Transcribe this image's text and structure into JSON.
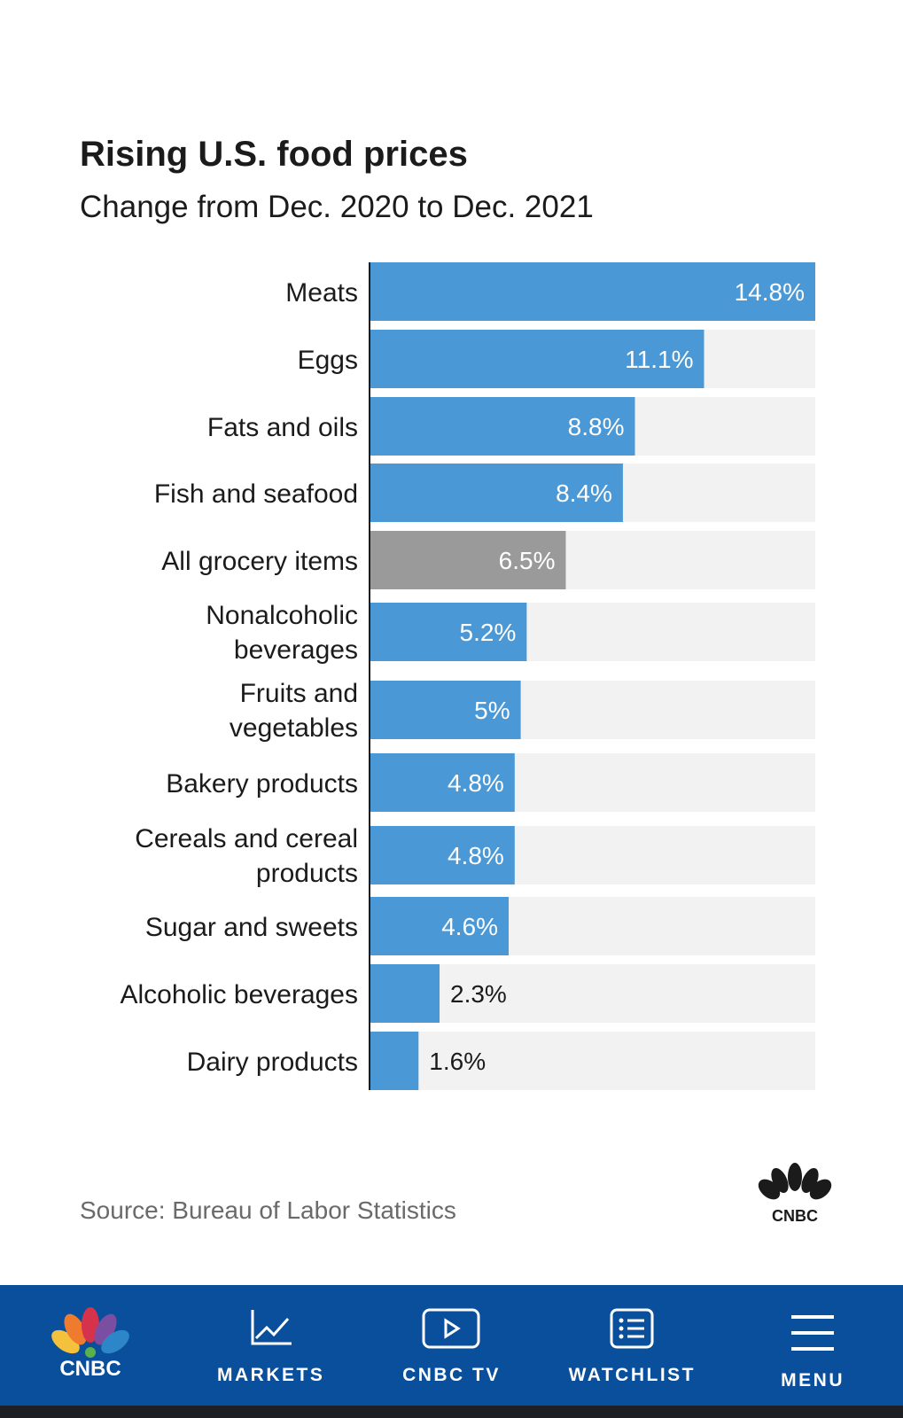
{
  "title": "Rising U.S. food prices",
  "subtitle": "Change from Dec. 2020 to Dec. 2021",
  "source": "Source: Bureau of Labor Statistics",
  "colors": {
    "bar": "#4a98d6",
    "highlight": "#9a9a9a",
    "track": "#f2f2f2",
    "nav": "#0a4f9b"
  },
  "chart_data": {
    "type": "bar",
    "orientation": "horizontal",
    "categories": [
      [
        "Meats"
      ],
      [
        "Eggs"
      ],
      [
        "Fats and oils"
      ],
      [
        "Fish and seafood"
      ],
      [
        "All grocery items"
      ],
      [
        "Nonalcoholic",
        "beverages"
      ],
      [
        "Fruits and",
        "vegetables"
      ],
      [
        "Bakery products"
      ],
      [
        "Cereals and cereal",
        "products"
      ],
      [
        "Sugar and sweets"
      ],
      [
        "Alcoholic beverages"
      ],
      [
        "Dairy products"
      ]
    ],
    "values": [
      14.8,
      11.1,
      8.8,
      8.4,
      6.5,
      5.2,
      5,
      4.8,
      4.8,
      4.6,
      2.3,
      1.6
    ],
    "labels": [
      "14.8%",
      "11.1%",
      "8.8%",
      "8.4%",
      "6.5%",
      "5.2%",
      "5%",
      "4.8%",
      "4.8%",
      "4.6%",
      "2.3%",
      "1.6%"
    ],
    "highlight_category": "All grocery items",
    "xlim": [
      0,
      14.8
    ],
    "unit": "%"
  },
  "nav": {
    "items": [
      {
        "label": "",
        "icon": "cnbc-peacock-logo"
      },
      {
        "label": "MARKETS",
        "icon": "chart-line-icon"
      },
      {
        "label": "CNBC TV",
        "icon": "play-icon"
      },
      {
        "label": "WATCHLIST",
        "icon": "list-icon"
      },
      {
        "label": "MENU",
        "icon": "hamburger-menu-icon"
      }
    ]
  },
  "logo_text": "CNBC"
}
